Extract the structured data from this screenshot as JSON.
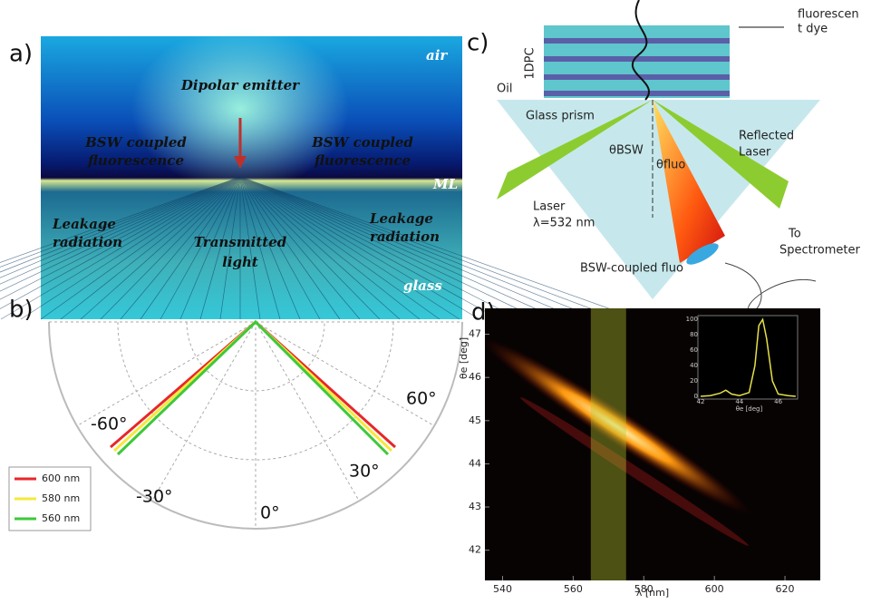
{
  "panel_a": {
    "label": "a)",
    "air": "air",
    "emitter": "Dipolar emitter",
    "bsw_left": [
      "BSW coupled",
      "fluorescence"
    ],
    "bsw_right": [
      "BSW coupled",
      "fluorescence"
    ],
    "ml": "ML",
    "leak_left": [
      "Leakage",
      "radiation"
    ],
    "leak_right": [
      "Leakage",
      "radiation"
    ],
    "transmitted": [
      "Transmitted",
      "light"
    ],
    "glass": "glass"
  },
  "panel_b": {
    "label": "b)",
    "angles": [
      "-60°",
      "60°",
      "-30°",
      "30°",
      "0°"
    ],
    "legend": [
      {
        "name": "600 nm",
        "color": "#e8262a"
      },
      {
        "name": "580 nm",
        "color": "#f5e83c"
      },
      {
        "name": "560 nm",
        "color": "#3ec83a"
      }
    ]
  },
  "panel_c": {
    "label": "c)",
    "dye": [
      "fluorescen",
      "t dye"
    ],
    "stack": "1DPC",
    "oil": "Oil",
    "prism": "Glass prism",
    "theta_bsw": "θBSW",
    "theta_fluo": "θfluo",
    "reflected": [
      "Reflected",
      "Laser"
    ],
    "laser": [
      "Laser",
      "λ=532 nm"
    ],
    "bsw_fluo": "BSW-coupled fluo",
    "spectrometer": [
      "To",
      "Spectrometer"
    ]
  },
  "panel_d": {
    "label": "d)",
    "xlabel": "λ [nm]",
    "ylabel": "θe [deg]",
    "xlim": [
      535,
      630
    ],
    "ylim": [
      41.3,
      47.6
    ],
    "xticks": [
      540,
      560,
      580,
      600,
      620
    ],
    "yticks": [
      42,
      43,
      44,
      45,
      46,
      47
    ],
    "band": [
      565,
      575
    ],
    "inset": {
      "xlim": [
        42,
        47
      ],
      "ylim": [
        0,
        105
      ],
      "xticks": [
        42,
        44,
        46
      ],
      "yticks": [
        0,
        20,
        40,
        60,
        80,
        100
      ],
      "xlabel": "θe [deg]",
      "x": [
        42,
        42.5,
        43,
        43.3,
        43.6,
        44,
        44.5,
        44.8,
        45,
        45.2,
        45.4,
        45.7,
        46,
        46.5,
        46.9
      ],
      "values": [
        0,
        1,
        4,
        8,
        3,
        1,
        5,
        40,
        92,
        100,
        75,
        20,
        3,
        1,
        0
      ],
      "color": "#e6e04a"
    }
  }
}
